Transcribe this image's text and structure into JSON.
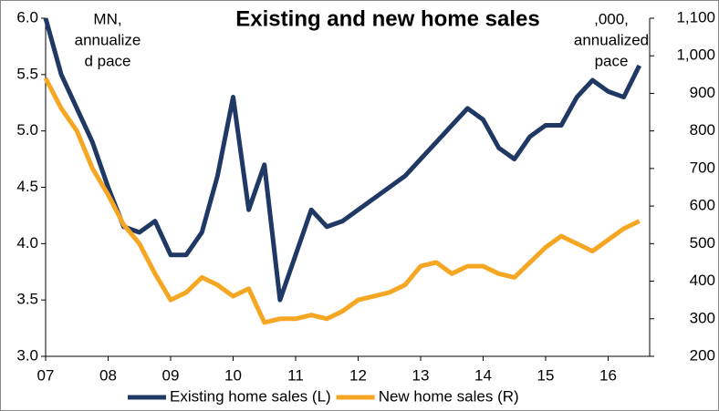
{
  "chart_data": {
    "type": "line",
    "title": "Existing and new home sales",
    "annotations": [
      [
        "MN,",
        "annualize",
        "d pace"
      ],
      [
        ",000,",
        "annualized",
        "pace"
      ]
    ],
    "categories": [
      "07",
      null,
      null,
      null,
      "08",
      null,
      null,
      null,
      "09",
      null,
      null,
      null,
      "10",
      null,
      null,
      null,
      "11",
      null,
      null,
      null,
      "12",
      null,
      null,
      null,
      "13",
      null,
      null,
      null,
      "14",
      null,
      null,
      null,
      "15",
      null,
      null,
      null,
      "16",
      null,
      null
    ],
    "series": [
      {
        "name": "Existing home sales (L)",
        "color": "#1f3864",
        "axis": "y",
        "values": [
          6.0,
          5.5,
          5.2,
          4.9,
          4.5,
          4.15,
          4.1,
          4.2,
          3.9,
          3.9,
          4.1,
          4.6,
          5.3,
          4.3,
          4.7,
          3.5,
          3.9,
          4.3,
          4.15,
          4.2,
          4.3,
          4.4,
          4.5,
          4.6,
          4.75,
          4.9,
          5.05,
          5.2,
          5.1,
          4.85,
          4.75,
          4.95,
          5.05,
          5.05,
          5.3,
          5.45,
          5.35,
          5.3,
          5.58
        ]
      },
      {
        "name": "New home sales (R)",
        "color": "#f5a623",
        "axis": "y2",
        "values": [
          940,
          860,
          800,
          700,
          630,
          550,
          500,
          420,
          350,
          370,
          410,
          390,
          360,
          380,
          290,
          300,
          300,
          310,
          300,
          320,
          350,
          360,
          370,
          390,
          440,
          450,
          420,
          440,
          440,
          420,
          410,
          450,
          490,
          520,
          500,
          480,
          510,
          540,
          560
        ]
      }
    ],
    "ylim": [
      3.0,
      6.0
    ],
    "yticks": [
      {
        "value": 3,
        "label": "3.0"
      },
      3.5,
      {
        "value": 4,
        "label": "4.0"
      },
      4.5,
      {
        "value": 5,
        "label": "5.0"
      },
      5.5,
      {
        "value": 6,
        "label": "6.0"
      }
    ],
    "y2lim": [
      200,
      1100
    ],
    "y2ticks": [
      200,
      300,
      400,
      500,
      600,
      700,
      800,
      900,
      {
        "value": 1000,
        "label": "1,000"
      },
      {
        "value": 1100,
        "label": "1,100"
      }
    ],
    "grid": false,
    "legend": "bottom"
  }
}
